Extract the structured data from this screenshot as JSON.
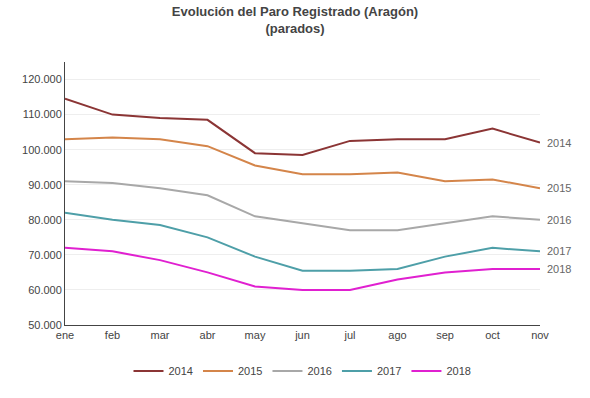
{
  "chart_data": {
    "type": "line",
    "title": "Evolución del Paro Registrado (Aragón)",
    "subtitle": "(parados)",
    "categories": [
      "ene",
      "feb",
      "mar",
      "abr",
      "may",
      "jun",
      "jul",
      "ago",
      "sep",
      "oct",
      "nov"
    ],
    "series": [
      {
        "name": "2014",
        "color": "#8B3535",
        "values": [
          114500,
          110000,
          109000,
          108500,
          99000,
          98500,
          102500,
          103000,
          103000,
          106000,
          102000
        ]
      },
      {
        "name": "2015",
        "color": "#D4854A",
        "values": [
          103000,
          103500,
          103000,
          101000,
          95500,
          93000,
          93000,
          93500,
          91000,
          91500,
          89000
        ]
      },
      {
        "name": "2016",
        "color": "#A8A8A8",
        "values": [
          91000,
          90500,
          89000,
          87000,
          81000,
          79000,
          77000,
          77000,
          79000,
          81000,
          80000
        ]
      },
      {
        "name": "2017",
        "color": "#4E9FA8",
        "values": [
          82000,
          80000,
          78500,
          75000,
          69500,
          65500,
          65500,
          66000,
          69500,
          72000,
          71000
        ]
      },
      {
        "name": "2018",
        "color": "#E020D0",
        "values": [
          72000,
          71000,
          68500,
          65000,
          61000,
          60000,
          60000,
          63000,
          65000,
          66000,
          66000
        ]
      }
    ],
    "annotations": [
      {
        "text": "2014",
        "y": 102000
      },
      {
        "text": "2015",
        "y": 89000
      },
      {
        "text": "2016",
        "y": 80000
      },
      {
        "text": "2017",
        "y": 71000
      },
      {
        "text": "2018",
        "y": 66000
      }
    ],
    "ylim": [
      50000,
      125000
    ],
    "yticks": [
      {
        "value": 50000,
        "label": "50.000"
      },
      {
        "value": 60000,
        "label": "60.000"
      },
      {
        "value": 70000,
        "label": "70.000"
      },
      {
        "value": 80000,
        "label": "80.000"
      },
      {
        "value": 90000,
        "label": "90.000"
      },
      {
        "value": 100000,
        "label": "100.000"
      },
      {
        "value": 110000,
        "label": "110.000"
      },
      {
        "value": 120000,
        "label": "120.000"
      }
    ],
    "grid": true,
    "legend": "bottom"
  }
}
